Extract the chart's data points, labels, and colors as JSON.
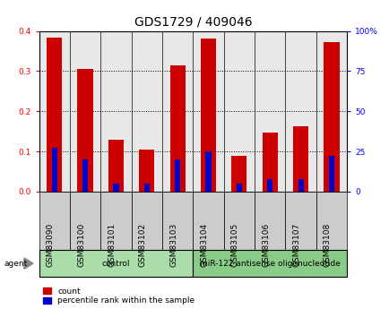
{
  "title": "GDS1729 / 409046",
  "samples": [
    "GSM83090",
    "GSM83100",
    "GSM83101",
    "GSM83102",
    "GSM83103",
    "GSM83104",
    "GSM83105",
    "GSM83106",
    "GSM83107",
    "GSM83108"
  ],
  "count_values": [
    0.383,
    0.305,
    0.13,
    0.105,
    0.315,
    0.382,
    0.09,
    0.148,
    0.163,
    0.373
  ],
  "percentile_values": [
    27.5,
    20.0,
    5.0,
    5.0,
    20.0,
    25.0,
    5.0,
    7.5,
    7.5,
    22.5
  ],
  "groups": [
    {
      "label": "control",
      "start": 0,
      "end": 5,
      "color": "#aaddaa"
    },
    {
      "label": "miR-122 antisense oligonucleotide",
      "start": 5,
      "end": 10,
      "color": "#88cc88"
    }
  ],
  "ylim_left": [
    0,
    0.4
  ],
  "ylim_right": [
    0,
    100
  ],
  "yticks_left": [
    0,
    0.1,
    0.2,
    0.3,
    0.4
  ],
  "yticks_right": [
    0,
    25,
    50,
    75,
    100
  ],
  "ytick_labels_right": [
    "0",
    "25",
    "50",
    "75",
    "100%"
  ],
  "bar_color_red": "#cc0000",
  "bar_color_blue": "#0000cc",
  "bar_width": 0.5,
  "blue_bar_width": 0.18,
  "background_color": "#ffffff",
  "plot_bg_color": "#e8e8e8",
  "grid_color": "#000000",
  "title_fontsize": 10,
  "tick_fontsize": 6.5,
  "label_fontsize": 7.5,
  "agent_label": "agent",
  "legend_count": "count",
  "legend_percentile": "percentile rank within the sample"
}
